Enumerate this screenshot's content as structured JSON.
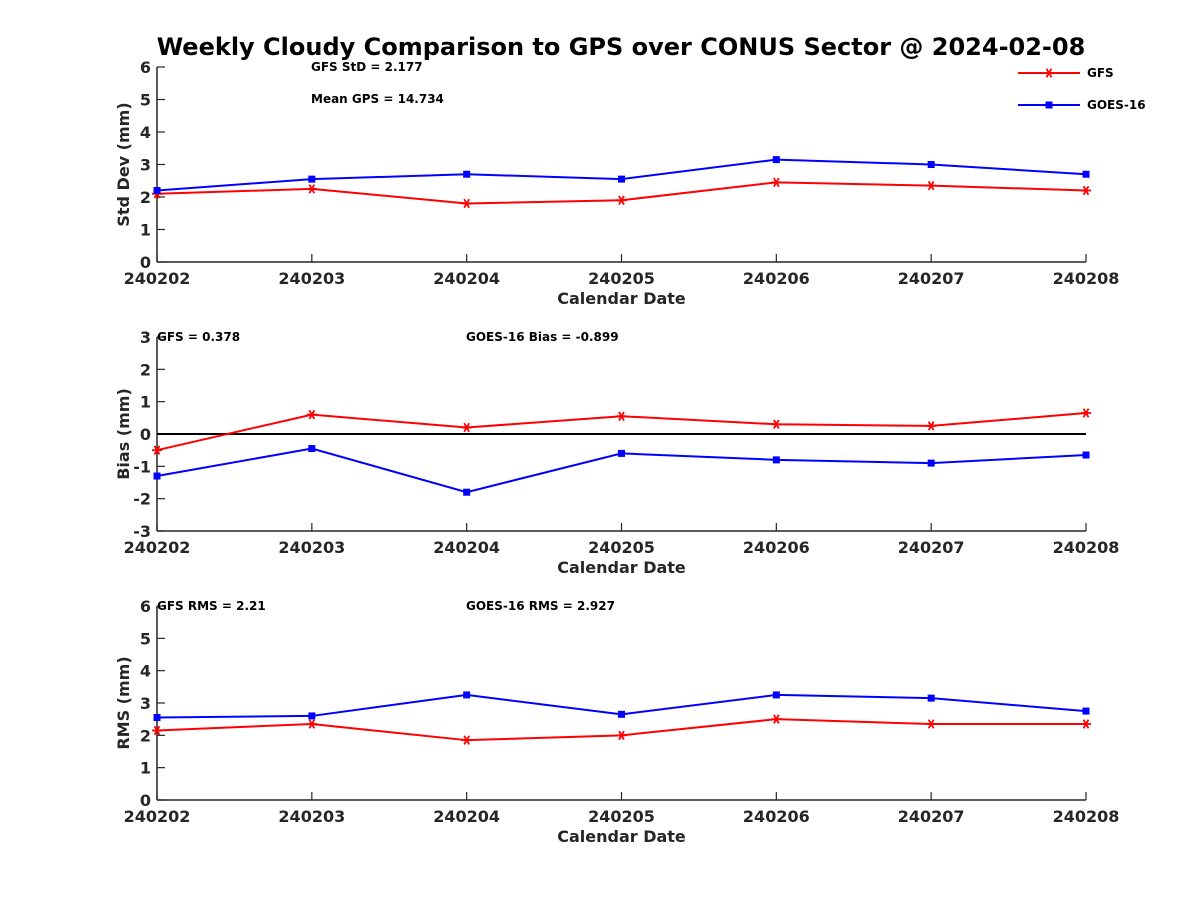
{
  "title": "Weekly Cloudy Comparison to GPS over CONUS Sector @ 2024-02-08",
  "legend": {
    "placement": "top-right",
    "entries": [
      {
        "label": "GFS",
        "color": "#ff0000",
        "marker": "asterisk"
      },
      {
        "label": "GOES-16",
        "color": "#0000ff",
        "marker": "square"
      }
    ]
  },
  "chart_data": [
    {
      "type": "line",
      "xlabel": "Calendar Date",
      "ylabel": "Std Dev (mm)",
      "ylim": [
        0,
        6
      ],
      "yticks": [
        0,
        1,
        2,
        3,
        4,
        5,
        6
      ],
      "categories": [
        "240202",
        "240203",
        "240204",
        "240205",
        "240206",
        "240207",
        "240208"
      ],
      "zero_line": false,
      "annotations": [
        "GFS StD = 2.177",
        "Mean GPS = 14.734"
      ],
      "series": [
        {
          "name": "GFS",
          "color": "#ff0000",
          "marker": "asterisk",
          "values": [
            2.1,
            2.25,
            1.8,
            1.9,
            2.45,
            2.35,
            2.2
          ]
        },
        {
          "name": "GOES-16",
          "color": "#0000ff",
          "marker": "square",
          "values": [
            2.2,
            2.55,
            2.7,
            2.55,
            3.15,
            3.0,
            2.7
          ]
        }
      ]
    },
    {
      "type": "line",
      "xlabel": "Calendar Date",
      "ylabel": "Bias (mm)",
      "ylim": [
        -3,
        3
      ],
      "yticks": [
        -3,
        -2,
        -1,
        0,
        1,
        2,
        3
      ],
      "categories": [
        "240202",
        "240203",
        "240204",
        "240205",
        "240206",
        "240207",
        "240208"
      ],
      "zero_line": true,
      "annotations": [
        "GFS = 0.378",
        "GOES-16 Bias  = -0.899"
      ],
      "series": [
        {
          "name": "GFS",
          "color": "#ff0000",
          "marker": "asterisk",
          "values": [
            -0.5,
            0.6,
            0.2,
            0.55,
            0.3,
            0.25,
            0.65
          ]
        },
        {
          "name": "GOES-16",
          "color": "#0000ff",
          "marker": "square",
          "values": [
            -1.3,
            -0.45,
            -1.8,
            -0.6,
            -0.8,
            -0.9,
            -0.65
          ]
        }
      ]
    },
    {
      "type": "line",
      "xlabel": "Calendar Date",
      "ylabel": "RMS (mm)",
      "ylim": [
        0,
        6
      ],
      "yticks": [
        0,
        1,
        2,
        3,
        4,
        5,
        6
      ],
      "categories": [
        "240202",
        "240203",
        "240204",
        "240205",
        "240206",
        "240207",
        "240208"
      ],
      "zero_line": false,
      "annotations": [
        "GFS RMS = 2.21",
        "GOES-16 RMS = 2.927"
      ],
      "series": [
        {
          "name": "GFS",
          "color": "#ff0000",
          "marker": "asterisk",
          "values": [
            2.15,
            2.35,
            1.85,
            2.0,
            2.5,
            2.35,
            2.35
          ]
        },
        {
          "name": "GOES-16",
          "color": "#0000ff",
          "marker": "square",
          "values": [
            2.55,
            2.6,
            3.25,
            2.65,
            3.25,
            3.15,
            2.75
          ]
        }
      ]
    }
  ]
}
